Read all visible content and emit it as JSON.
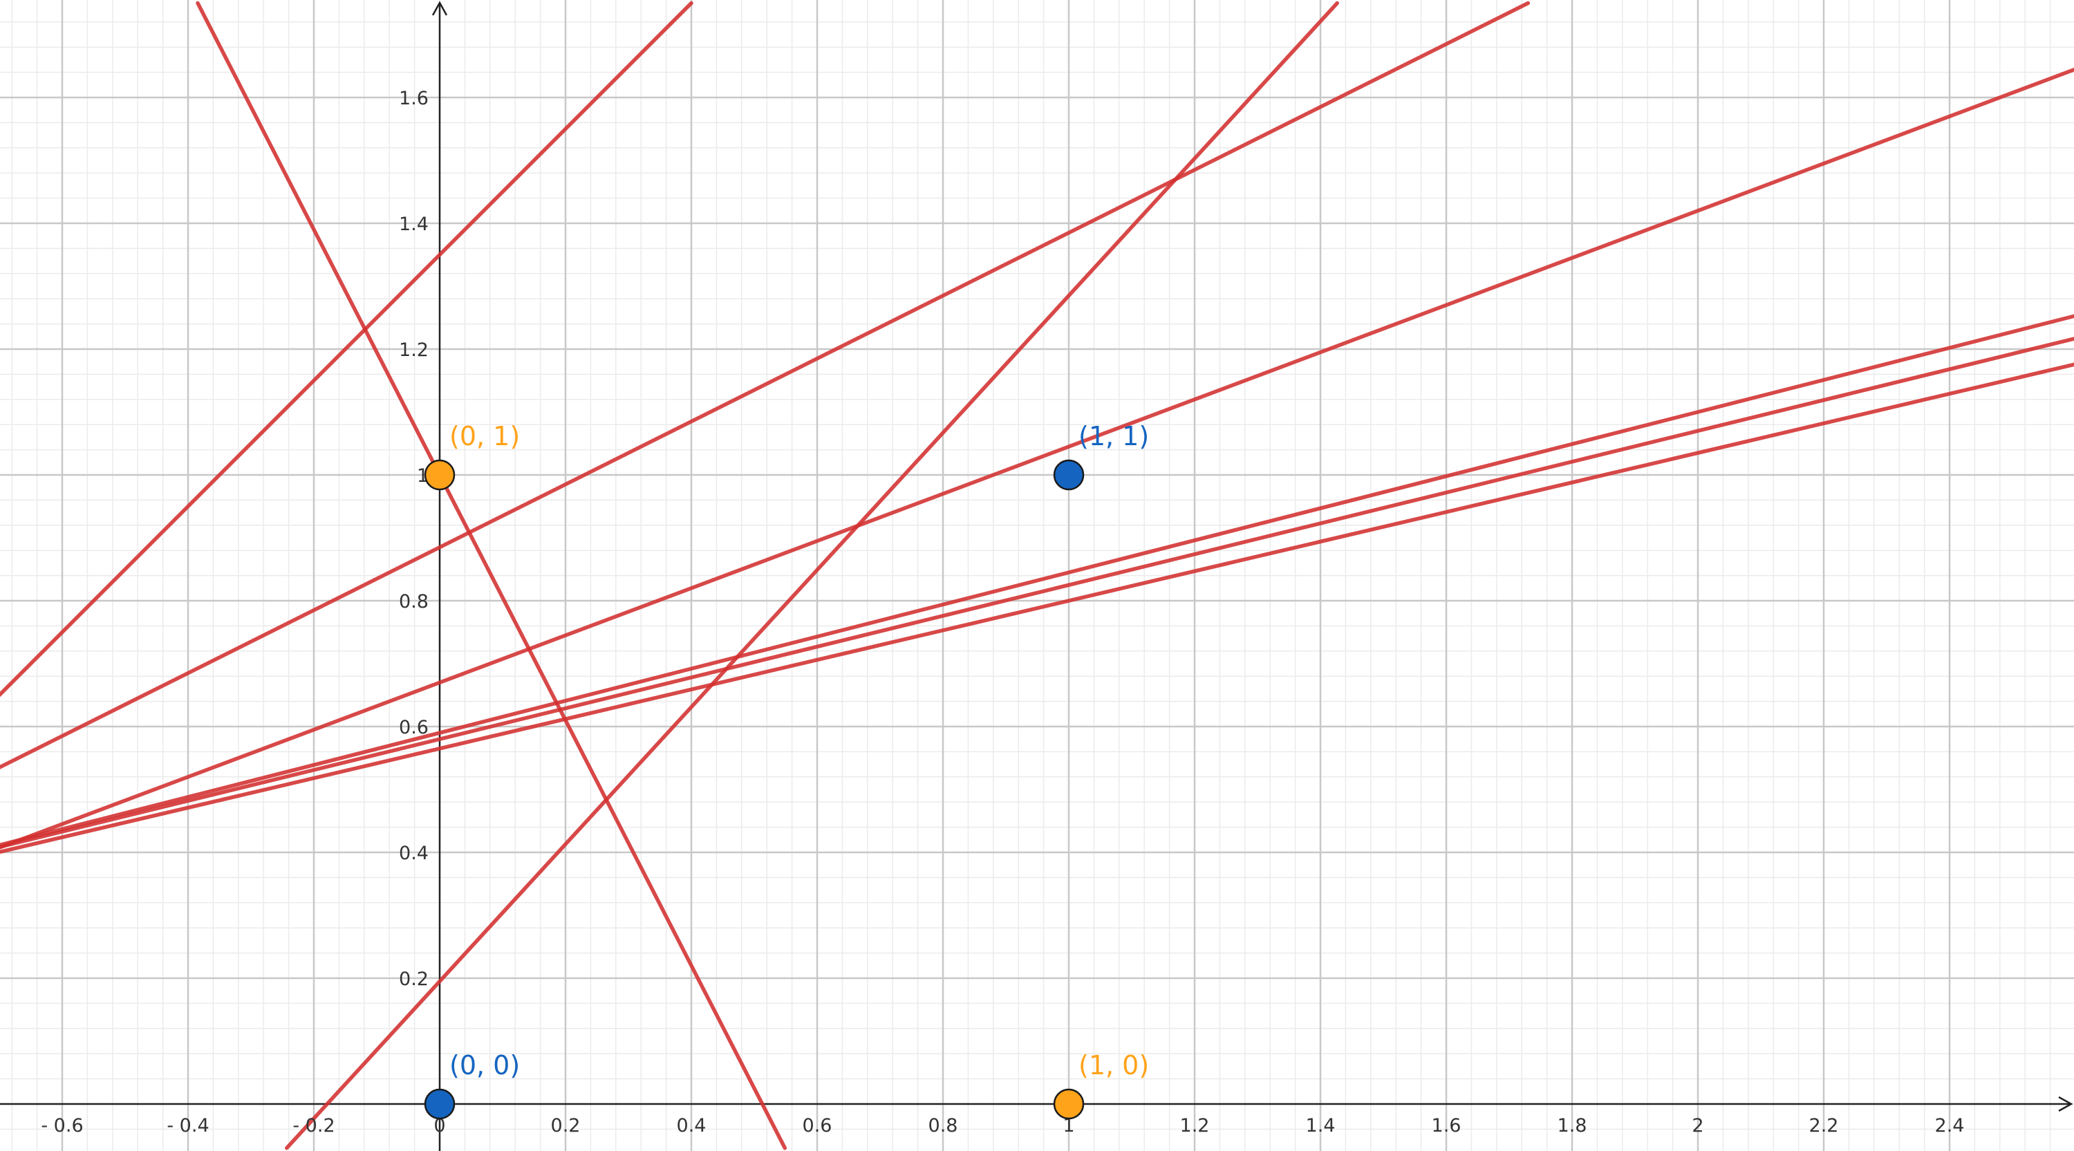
{
  "chart_data": {
    "type": "scatter",
    "title": "",
    "xlabel": "",
    "ylabel": "",
    "xlim": [
      -0.7,
      2.6
    ],
    "ylim": [
      -0.07,
      1.75
    ],
    "grid": true,
    "x_ticks": [
      {
        "value": -0.6,
        "label": "- 0.6"
      },
      {
        "value": -0.4,
        "label": "- 0.4"
      },
      {
        "value": -0.2,
        "label": "- 0.2"
      },
      {
        "value": 0,
        "label": "0"
      },
      {
        "value": 0.2,
        "label": "0.2"
      },
      {
        "value": 0.4,
        "label": "0.4"
      },
      {
        "value": 0.6,
        "label": "0.6"
      },
      {
        "value": 0.8,
        "label": "0.8"
      },
      {
        "value": 1,
        "label": "1"
      },
      {
        "value": 1.2,
        "label": "1.2"
      },
      {
        "value": 1.4,
        "label": "1.4"
      },
      {
        "value": 1.6,
        "label": "1.6"
      },
      {
        "value": 1.8,
        "label": "1.8"
      },
      {
        "value": 2,
        "label": "2"
      },
      {
        "value": 2.2,
        "label": "2.2"
      },
      {
        "value": 2.4,
        "label": "2.4"
      }
    ],
    "y_ticks": [
      {
        "value": 0.2,
        "label": "0.2"
      },
      {
        "value": 0.4,
        "label": "0.4"
      },
      {
        "value": 0.6,
        "label": "0.6"
      },
      {
        "value": 0.8,
        "label": "0.8"
      },
      {
        "value": 1,
        "label": "1"
      },
      {
        "value": 1.2,
        "label": "1.2"
      },
      {
        "value": 1.4,
        "label": "1.4"
      },
      {
        "value": 1.6,
        "label": "1.6"
      }
    ],
    "points": [
      {
        "x": 0,
        "y": 0,
        "label": "(0, 0)",
        "color": "#1565c0"
      },
      {
        "x": 1,
        "y": 1,
        "label": "(1, 1)",
        "color": "#1565c0"
      },
      {
        "x": 0,
        "y": 1,
        "label": "(0, 1)",
        "color": "#ffa31a"
      },
      {
        "x": 1,
        "y": 0,
        "label": "(1, 0)",
        "color": "#ffa31a"
      }
    ],
    "lines": [
      {
        "slope": -1.95,
        "intercept": 1.0
      },
      {
        "slope": 1.0,
        "intercept": 1.35
      },
      {
        "slope": 1.09,
        "intercept": 0.195
      },
      {
        "slope": 0.5,
        "intercept": 0.885
      },
      {
        "slope": 0.375,
        "intercept": 0.67
      },
      {
        "slope": 0.255,
        "intercept": 0.59
      },
      {
        "slope": 0.245,
        "intercept": 0.58
      },
      {
        "slope": 0.235,
        "intercept": 0.565
      }
    ],
    "colors": {
      "line": "#d32f2f",
      "axis": "#222222",
      "grid_major": "#c8c8c8",
      "grid_minor": "#ebebeb"
    }
  }
}
